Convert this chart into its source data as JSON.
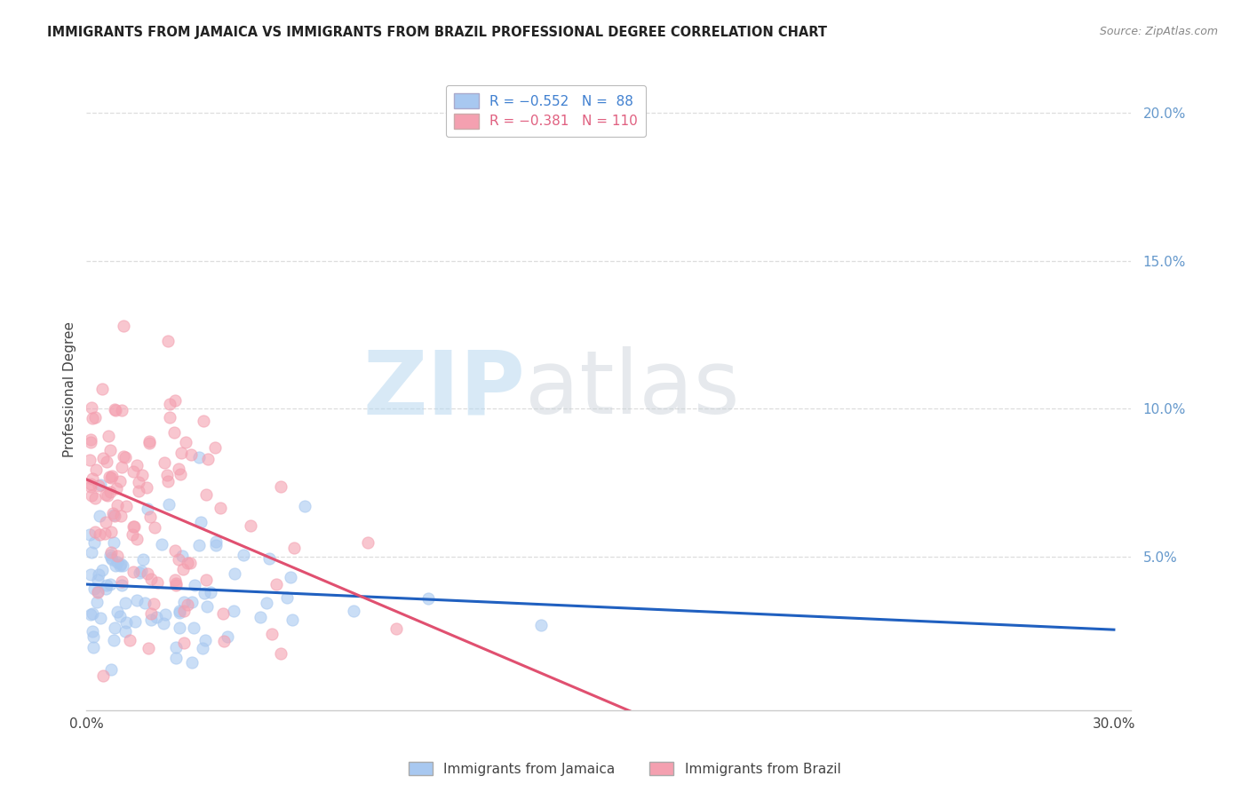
{
  "title": "IMMIGRANTS FROM JAMAICA VS IMMIGRANTS FROM BRAZIL PROFESSIONAL DEGREE CORRELATION CHART",
  "source": "Source: ZipAtlas.com",
  "ylabel": "Professional Degree",
  "xlim": [
    0.0,
    0.305
  ],
  "ylim": [
    -0.002,
    0.215
  ],
  "xtick_positions": [
    0.0,
    0.05,
    0.1,
    0.15,
    0.2,
    0.25,
    0.3
  ],
  "xticklabels": [
    "0.0%",
    "",
    "",
    "",
    "",
    "",
    "30.0%"
  ],
  "ytick_positions": [
    0.0,
    0.05,
    0.1,
    0.15,
    0.2
  ],
  "yticklabels_right": [
    "",
    "5.0%",
    "10.0%",
    "15.0%",
    "20.0%"
  ],
  "jamaica_R": -0.552,
  "jamaica_N": 88,
  "brazil_R": -0.381,
  "brazil_N": 110,
  "jamaica_color": "#A8C8F0",
  "brazil_color": "#F4A0B0",
  "jamaica_line_color": "#2060C0",
  "brazil_line_color": "#E05070",
  "jamaica_legend_color": "#4080D0",
  "brazil_legend_color": "#E06080",
  "watermark_zip": "ZIP",
  "watermark_atlas": "atlas",
  "background_color": "#FFFFFF",
  "grid_color": "#DDDDDD",
  "spine_color": "#CCCCCC",
  "title_color": "#222222",
  "source_color": "#888888",
  "right_axis_color": "#6699CC",
  "jamaica_line_intercept": 0.045,
  "jamaica_line_slope": -0.155,
  "brazil_line_intercept": 0.073,
  "brazil_line_slope": -0.32
}
